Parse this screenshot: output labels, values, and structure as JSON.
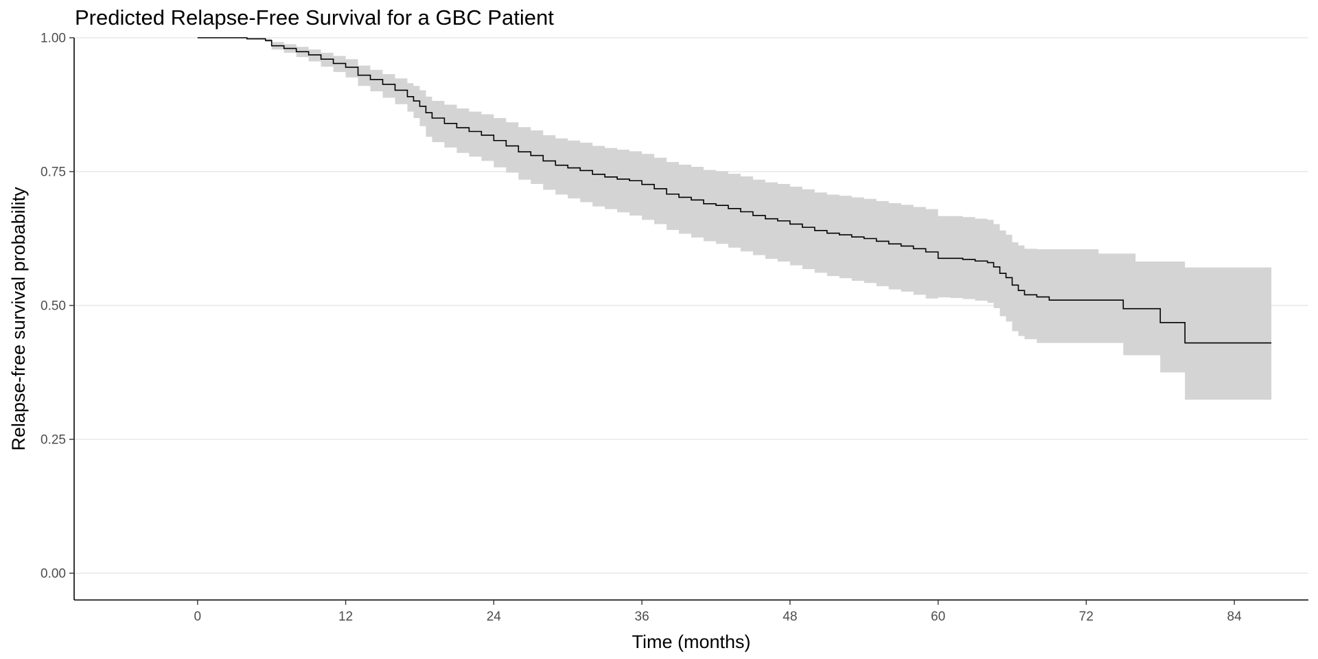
{
  "chart_data": {
    "type": "line",
    "title": "Predicted Relapse-Free Survival for a GBC Patient",
    "xlabel": "Time (months)",
    "ylabel": "Relapse-free survival probability",
    "xlim": [
      -10,
      90
    ],
    "ylim": [
      -0.05,
      1.0
    ],
    "x_ticks": [
      0,
      12,
      24,
      36,
      48,
      60,
      72,
      84
    ],
    "x_tick_labels": [
      "0",
      "12",
      "24",
      "36",
      "48",
      "60",
      "72",
      "84"
    ],
    "y_ticks": [
      0.0,
      0.25,
      0.5,
      0.75,
      1.0
    ],
    "y_tick_labels": [
      "0.00",
      "0.25",
      "0.50",
      "0.75",
      "1.00"
    ],
    "grid": "horizontal",
    "series": [
      {
        "line_color": "#000000",
        "band_color": "#d4d4d4",
        "x": [
          0,
          3,
          4,
          5.5,
          6,
          7,
          8,
          9,
          10,
          11,
          12,
          13,
          14,
          15,
          16,
          17,
          17.5,
          18,
          18.5,
          19,
          20,
          21,
          22,
          23,
          24,
          25,
          26,
          27,
          28,
          29,
          30,
          31,
          32,
          33,
          34,
          35,
          36,
          37,
          38,
          39,
          40,
          41,
          42,
          43,
          44,
          45,
          46,
          47,
          48,
          49,
          50,
          51,
          52,
          53,
          54,
          55,
          56,
          57,
          58,
          59,
          60,
          61,
          62,
          63,
          64,
          64.5,
          65,
          65.5,
          66,
          66.5,
          67,
          68,
          69,
          70,
          71,
          72,
          73,
          74,
          75,
          76,
          77,
          78,
          79,
          80,
          81,
          82,
          83,
          84,
          85,
          87
        ],
        "y": [
          1.0,
          1.0,
          0.998,
          0.995,
          0.985,
          0.98,
          0.974,
          0.968,
          0.96,
          0.952,
          0.945,
          0.93,
          0.922,
          0.913,
          0.902,
          0.89,
          0.882,
          0.872,
          0.86,
          0.85,
          0.84,
          0.832,
          0.825,
          0.818,
          0.808,
          0.798,
          0.787,
          0.78,
          0.77,
          0.762,
          0.757,
          0.752,
          0.745,
          0.74,
          0.736,
          0.733,
          0.726,
          0.718,
          0.708,
          0.702,
          0.697,
          0.69,
          0.687,
          0.681,
          0.675,
          0.668,
          0.662,
          0.658,
          0.652,
          0.646,
          0.64,
          0.635,
          0.632,
          0.628,
          0.625,
          0.62,
          0.615,
          0.611,
          0.606,
          0.6,
          0.588,
          0.588,
          0.586,
          0.583,
          0.58,
          0.572,
          0.56,
          0.552,
          0.538,
          0.528,
          0.52,
          0.516,
          0.51,
          0.51,
          0.51,
          0.51,
          0.51,
          0.51,
          0.494,
          0.494,
          0.494,
          0.468,
          0.468,
          0.43,
          0.43,
          0.43,
          0.43,
          0.43,
          0.43,
          0.43
        ],
        "lower": [
          1.0,
          1.0,
          0.997,
          0.992,
          0.978,
          0.972,
          0.964,
          0.956,
          0.946,
          0.936,
          0.926,
          0.91,
          0.9,
          0.888,
          0.876,
          0.862,
          0.85,
          0.835,
          0.815,
          0.805,
          0.795,
          0.785,
          0.778,
          0.77,
          0.758,
          0.748,
          0.735,
          0.727,
          0.716,
          0.707,
          0.7,
          0.693,
          0.685,
          0.68,
          0.674,
          0.668,
          0.66,
          0.652,
          0.641,
          0.634,
          0.627,
          0.62,
          0.615,
          0.608,
          0.601,
          0.594,
          0.587,
          0.582,
          0.575,
          0.568,
          0.561,
          0.555,
          0.551,
          0.546,
          0.542,
          0.536,
          0.53,
          0.526,
          0.52,
          0.513,
          0.515,
          0.514,
          0.512,
          0.509,
          0.505,
          0.495,
          0.48,
          0.47,
          0.452,
          0.443,
          0.437,
          0.43,
          0.43,
          0.43,
          0.43,
          0.43,
          0.43,
          0.43,
          0.407,
          0.407,
          0.407,
          0.375,
          0.375,
          0.324,
          0.324,
          0.324,
          0.324,
          0.324,
          0.324,
          0.324
        ],
        "upper": [
          1.0,
          1.0,
          1.0,
          0.998,
          0.992,
          0.988,
          0.983,
          0.978,
          0.972,
          0.966,
          0.96,
          0.948,
          0.94,
          0.932,
          0.924,
          0.915,
          0.91,
          0.902,
          0.89,
          0.882,
          0.875,
          0.868,
          0.862,
          0.857,
          0.85,
          0.842,
          0.833,
          0.827,
          0.818,
          0.812,
          0.808,
          0.804,
          0.798,
          0.794,
          0.791,
          0.788,
          0.783,
          0.776,
          0.768,
          0.763,
          0.759,
          0.753,
          0.751,
          0.746,
          0.741,
          0.735,
          0.73,
          0.727,
          0.722,
          0.717,
          0.711,
          0.707,
          0.705,
          0.702,
          0.699,
          0.695,
          0.691,
          0.688,
          0.684,
          0.68,
          0.667,
          0.667,
          0.665,
          0.662,
          0.66,
          0.652,
          0.64,
          0.632,
          0.618,
          0.612,
          0.606,
          0.605,
          0.605,
          0.605,
          0.605,
          0.605,
          0.597,
          0.597,
          0.597,
          0.582,
          0.582,
          0.582,
          0.582,
          0.571,
          0.571,
          0.571,
          0.571,
          0.571,
          0.571,
          0.571
        ]
      }
    ]
  }
}
